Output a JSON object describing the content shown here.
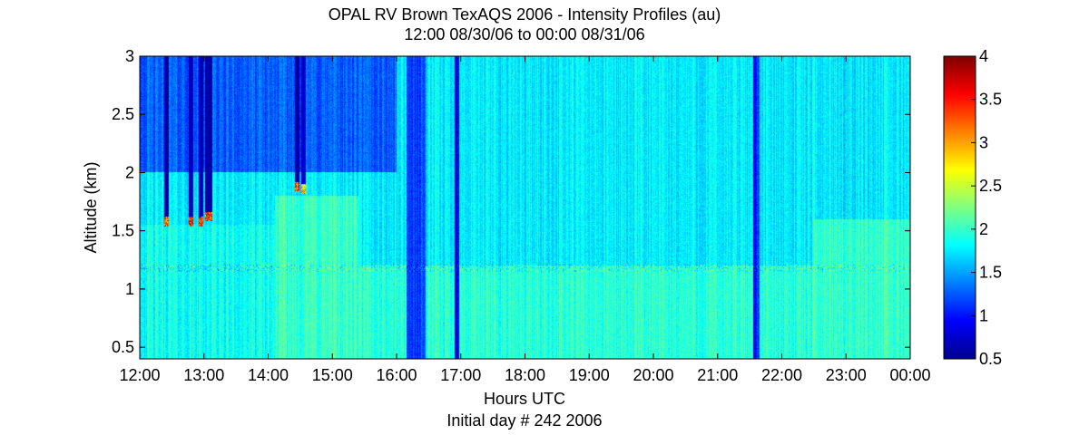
{
  "chart_data": {
    "type": "heatmap",
    "title": "OPAL RV Brown TexAQS 2006 - Intensity Profiles (au)",
    "subtitle": "12:00 08/30/06 to 00:00 08/31/06",
    "xlabel": "Hours UTC",
    "xlabel2": "Initial day # 242  2006",
    "ylabel": "Altitude (km)",
    "x_tick_labels": [
      "12:00",
      "13:00",
      "14:00",
      "15:00",
      "16:00",
      "17:00",
      "18:00",
      "19:00",
      "20:00",
      "21:00",
      "22:00",
      "23:00",
      "00:00"
    ],
    "x_ticks_hours": [
      12,
      13,
      14,
      15,
      16,
      17,
      18,
      19,
      20,
      21,
      22,
      23,
      24
    ],
    "xlim_hours": [
      12,
      24
    ],
    "y_ticks": [
      0.5,
      1,
      1.5,
      2,
      2.5,
      3
    ],
    "ylim": [
      0.4,
      3
    ],
    "colorbar_ticks": [
      0.5,
      1,
      1.5,
      2,
      2.5,
      3,
      3.5,
      4
    ],
    "clim": [
      0.5,
      4
    ],
    "colormap": "jet",
    "colormap_colors": [
      "#00008f",
      "#0000ff",
      "#0080ff",
      "#00ffff",
      "#80ff80",
      "#ffff00",
      "#ff8000",
      "#ff0000",
      "#800000"
    ],
    "background_value": 1.75,
    "layers": [
      {
        "x_start": 12.0,
        "x_end": 14.1,
        "y_min": 0.4,
        "y_max": 1.55,
        "value": 1.85
      },
      {
        "x_start": 14.1,
        "x_end": 15.4,
        "y_min": 0.4,
        "y_max": 1.8,
        "value": 2.0
      },
      {
        "x_start": 15.4,
        "x_end": 24.0,
        "y_min": 0.4,
        "y_max": 1.2,
        "value": 1.95
      },
      {
        "x_start": 22.5,
        "x_end": 24.0,
        "y_min": 0.4,
        "y_max": 1.6,
        "value": 2.0
      },
      {
        "x_start": 12.0,
        "x_end": 16.0,
        "y_min": 2.0,
        "y_max": 3.0,
        "value": 1.25
      }
    ],
    "cloud_events": [
      {
        "time": 12.42,
        "altitude": 1.58,
        "peak": 4.0,
        "column_value": 0.6
      },
      {
        "time": 12.8,
        "altitude": 1.58,
        "peak": 4.0,
        "column_value": 0.6
      },
      {
        "time": 12.95,
        "altitude": 1.58,
        "peak": 4.0,
        "column_value": 0.6
      },
      {
        "time": 13.05,
        "altitude": 1.62,
        "peak": 4.0,
        "column_value": 0.6
      },
      {
        "time": 13.1,
        "altitude": 1.62,
        "peak": 4.0,
        "column_value": 0.6
      },
      {
        "time": 14.45,
        "altitude": 1.88,
        "peak": 4.0,
        "column_value": 0.6
      },
      {
        "time": 14.55,
        "altitude": 1.86,
        "peak": 3.5,
        "column_value": 0.8
      }
    ],
    "low_signal_bands": [
      {
        "time_start": 16.15,
        "time_end": 16.45,
        "value": 1.15
      },
      {
        "time_start": 16.9,
        "time_end": 16.98,
        "value": 0.9
      },
      {
        "time_start": 21.55,
        "time_end": 21.65,
        "value": 1.05
      }
    ]
  }
}
